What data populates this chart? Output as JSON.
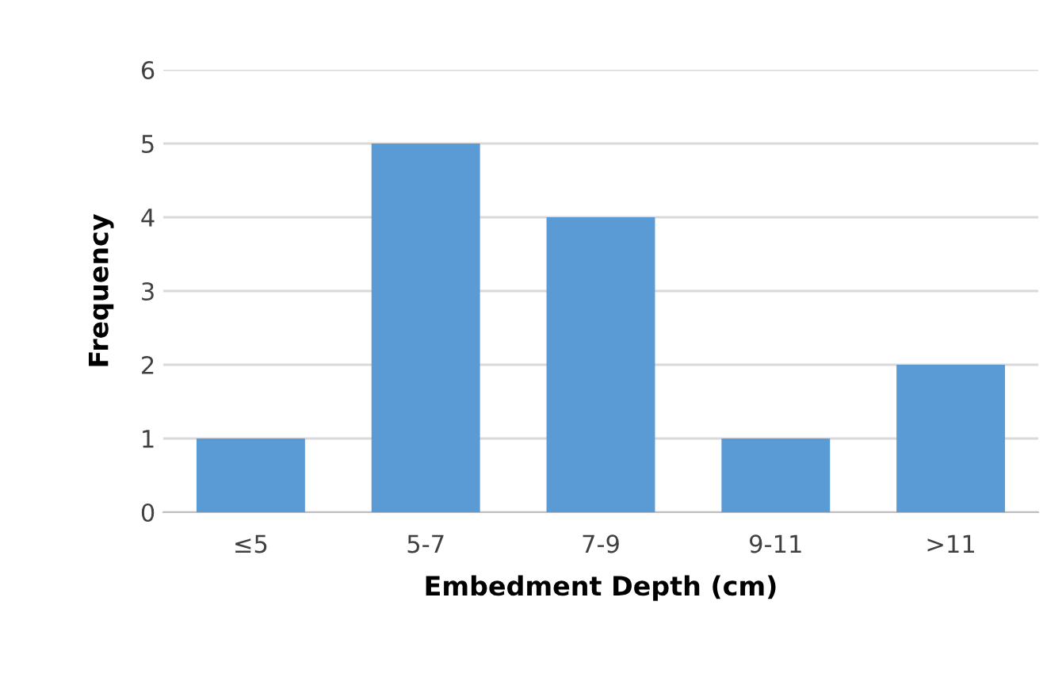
{
  "chart_data": {
    "type": "bar",
    "xlabel": "Embedment Depth (cm)",
    "ylabel": "Frequency",
    "categories": [
      "≤5",
      "5-7",
      "7-9",
      "9-11",
      ">11"
    ],
    "values": [
      1,
      5,
      4,
      1,
      2
    ],
    "color": "#5b9bd5",
    "ylim": [
      0,
      6
    ],
    "yticks": [
      0,
      1,
      2,
      3,
      4,
      5,
      6
    ],
    "grid": "y"
  }
}
